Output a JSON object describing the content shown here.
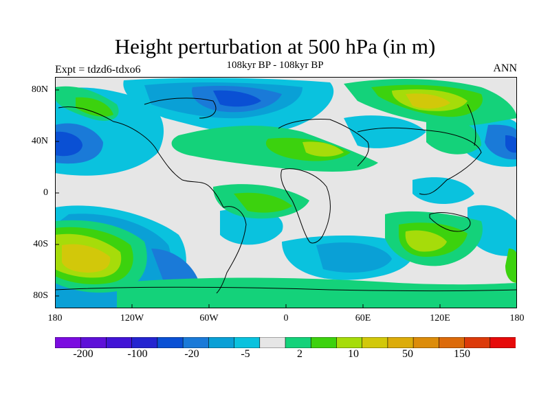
{
  "header": {
    "title": "Height perturbation at 500 hPa (in m)",
    "subtitle": "108kyr BP - 108kyr BP",
    "left_label": "Expt = tdzd6-tdxo6",
    "right_label": "ANN"
  },
  "map": {
    "projection": "cylindrical-equidistant",
    "lat_labels": [
      "80N",
      "40N",
      "0",
      "40S",
      "80S"
    ],
    "lon_labels": [
      "180",
      "120W",
      "60W",
      "0",
      "60E",
      "120E",
      "180"
    ],
    "background_color": "#e6e6e6",
    "coastline_color": "#000000"
  },
  "colorbar": {
    "colors": [
      "#7b0ce0",
      "#5e10d8",
      "#4214d6",
      "#2424d0",
      "#0a50d4",
      "#1a7ad8",
      "#0aa0d6",
      "#0ac2de",
      "#e6e6e6",
      "#14d27a",
      "#3cd20e",
      "#a6dc0a",
      "#d2c80a",
      "#dcac0a",
      "#dc8c0a",
      "#dc6a0a",
      "#dc3a0a",
      "#e60a0a"
    ],
    "labels": [
      "-200",
      "-100",
      "-20",
      "-5",
      "2",
      "10",
      "50",
      "150"
    ]
  }
}
